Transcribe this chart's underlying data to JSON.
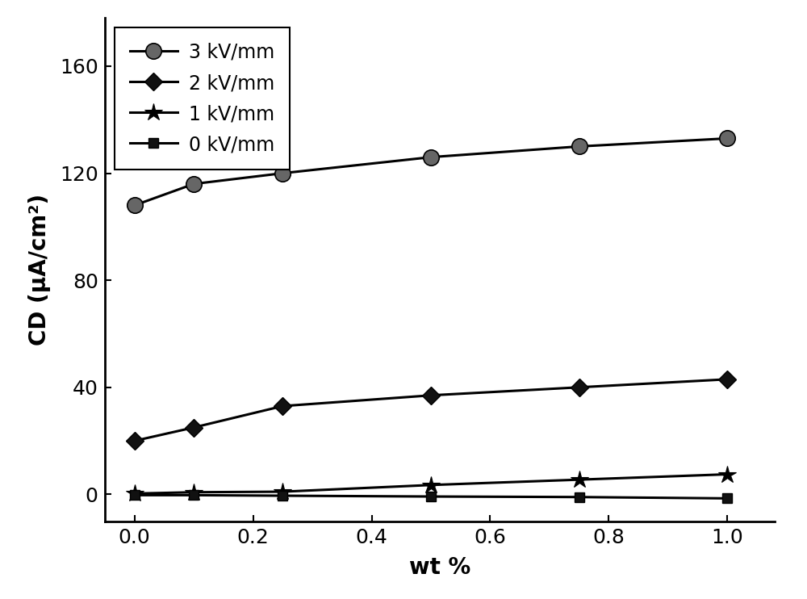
{
  "x": [
    0.0,
    0.1,
    0.25,
    0.5,
    0.75,
    1.0
  ],
  "series_3kV": [
    108,
    116,
    120,
    126,
    130,
    133
  ],
  "series_2kV": [
    20,
    25,
    33,
    37,
    40,
    43
  ],
  "series_1kV": [
    0.3,
    0.8,
    1.0,
    3.5,
    5.5,
    7.5
  ],
  "series_0kV": [
    -0.3,
    -0.3,
    -0.5,
    -0.8,
    -1.0,
    -1.5
  ],
  "labels": [
    "3 kV/mm",
    "2 kV/mm",
    "1 kV/mm",
    "0 kV/mm"
  ],
  "xlabel": "wt %",
  "ylabel": "CD (μA/cm²)",
  "xlim": [
    -0.05,
    1.08
  ],
  "ylim": [
    -10,
    178
  ],
  "yticks": [
    0,
    40,
    80,
    120,
    160
  ],
  "xticks": [
    0.0,
    0.2,
    0.4,
    0.6,
    0.8,
    1.0
  ],
  "linecolor": "#000000",
  "linewidth": 2.2,
  "markersize_circle": 14,
  "markersize_diamond": 11,
  "markersize_asterisk": 16,
  "markersize_square": 9,
  "background_color": "#ffffff",
  "label_fontsize": 20,
  "tick_fontsize": 18,
  "legend_fontsize": 17
}
